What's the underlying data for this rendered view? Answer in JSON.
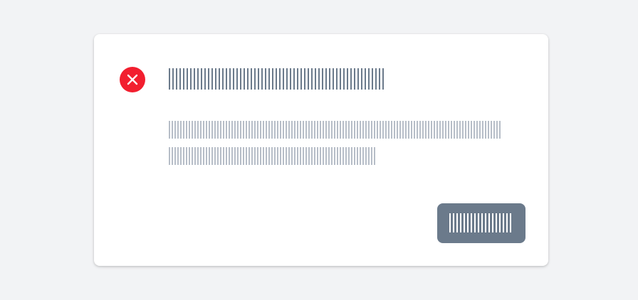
{
  "dialog": {
    "title": "",
    "description": [
      "",
      ""
    ],
    "action_label": ""
  },
  "colors": {
    "page_background": "#f2f3f5",
    "dialog_background": "#ffffff",
    "error_icon": "#f21f2f",
    "button": "#6b7a8b",
    "title_text": "#6b7a8b",
    "description_text": "#b7bec8"
  },
  "icons": {
    "status": "error-x-circle"
  }
}
